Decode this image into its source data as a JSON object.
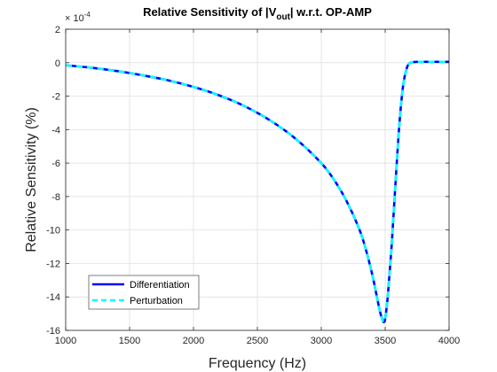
{
  "chart_data": {
    "type": "line",
    "title": "Relative Sensitivity of |V",
    "title_sub": "out",
    "title_suffix": "| w.r.t. OP-AMP",
    "xlabel": "Frequency (Hz)",
    "ylabel": "Relative Sensitivity (%)",
    "y_exponent_label": "× 10",
    "y_exponent_power": "-4",
    "xlim": [
      1000,
      4000
    ],
    "ylim": [
      -16,
      2
    ],
    "y_scale_factor": 0.0001,
    "grid": true,
    "legend_position": "lower-left",
    "xticks": [
      1000,
      1500,
      2000,
      2500,
      3000,
      3500,
      4000
    ],
    "xtick_labels": [
      "1000",
      "1500",
      "2000",
      "2500",
      "3000",
      "3500",
      "4000"
    ],
    "yticks": [
      2,
      0,
      -2,
      -4,
      -6,
      -8,
      -10,
      -12,
      -14,
      -16
    ],
    "ytick_labels": [
      "2",
      "0",
      "-2",
      "-4",
      "-6",
      "-8",
      "-10",
      "-12",
      "-14",
      "-16"
    ],
    "series": [
      {
        "name": "Differentiation",
        "color": "#0000ff",
        "style": "solid",
        "x": [
          1000,
          1200,
          1400,
          1600,
          1800,
          2000,
          2200,
          2400,
          2600,
          2800,
          3000,
          3100,
          3200,
          3300,
          3350,
          3400,
          3430,
          3460,
          3480,
          3490,
          3500,
          3520,
          3550,
          3580,
          3610,
          3640,
          3670,
          3700,
          3750,
          3800,
          4000
        ],
        "y": [
          -0.15,
          -0.3,
          -0.5,
          -0.75,
          -1.05,
          -1.45,
          -1.95,
          -2.6,
          -3.45,
          -4.55,
          -6.0,
          -7.0,
          -8.3,
          -10.0,
          -11.2,
          -12.7,
          -13.8,
          -14.9,
          -15.4,
          -15.5,
          -15.3,
          -14.0,
          -11.0,
          -7.3,
          -3.8,
          -1.4,
          -0.3,
          0.0,
          0.05,
          0.05,
          0.05
        ]
      },
      {
        "name": "Perturbation",
        "color": "#00ffff",
        "style": "dashed",
        "x": [
          1000,
          1200,
          1400,
          1600,
          1800,
          2000,
          2200,
          2400,
          2600,
          2800,
          3000,
          3100,
          3200,
          3300,
          3350,
          3400,
          3430,
          3460,
          3480,
          3490,
          3500,
          3520,
          3550,
          3580,
          3610,
          3640,
          3670,
          3700,
          3750,
          3800,
          4000
        ],
        "y": [
          -0.15,
          -0.3,
          -0.5,
          -0.75,
          -1.05,
          -1.45,
          -1.95,
          -2.6,
          -3.45,
          -4.55,
          -6.0,
          -7.0,
          -8.3,
          -10.0,
          -11.2,
          -12.7,
          -13.8,
          -14.9,
          -15.4,
          -15.5,
          -15.3,
          -14.0,
          -11.0,
          -7.3,
          -3.8,
          -1.4,
          -0.3,
          0.0,
          0.05,
          0.05,
          0.05
        ]
      }
    ]
  }
}
